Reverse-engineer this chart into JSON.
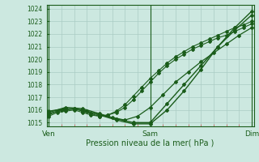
{
  "title": "Pression niveau de la mer( hPa )",
  "bg_color": "#cce8e0",
  "grid_color": "#aaccC4",
  "line_color": "#1a5c1a",
  "tick_color": "#cc3333",
  "text_color": "#1a5c1a",
  "ylim": [
    1014.7,
    1024.3
  ],
  "yticks": [
    1015,
    1016,
    1017,
    1018,
    1019,
    1020,
    1021,
    1022,
    1023,
    1024
  ],
  "xlim": [
    -0.5,
    48.5
  ],
  "xtick_positions": [
    0,
    24,
    48
  ],
  "xtick_labels": [
    "Ven",
    "Sam",
    "Dim"
  ],
  "series": [
    {
      "x": [
        0,
        2,
        4,
        6,
        8,
        10,
        12,
        14,
        16,
        18,
        20,
        22,
        24,
        26,
        28,
        30,
        32,
        34,
        36,
        38,
        40,
        42,
        44,
        46,
        48
      ],
      "y": [
        1015.5,
        1015.8,
        1015.9,
        1016.0,
        1015.8,
        1015.6,
        1015.5,
        1015.6,
        1015.8,
        1016.2,
        1016.8,
        1017.5,
        1018.2,
        1018.9,
        1019.5,
        1020.0,
        1020.4,
        1020.8,
        1021.1,
        1021.4,
        1021.7,
        1021.9,
        1022.2,
        1022.5,
        1022.8
      ],
      "marker": "D",
      "markersize": 2.0,
      "linewidth": 0.8
    },
    {
      "x": [
        0,
        2,
        4,
        6,
        8,
        10,
        12,
        14,
        16,
        18,
        20,
        22,
        24,
        26,
        28,
        30,
        32,
        34,
        36,
        38,
        40,
        42,
        44,
        46,
        48
      ],
      "y": [
        1015.6,
        1015.9,
        1016.0,
        1016.1,
        1015.9,
        1015.7,
        1015.5,
        1015.6,
        1015.9,
        1016.4,
        1017.1,
        1017.8,
        1018.5,
        1019.1,
        1019.7,
        1020.2,
        1020.6,
        1021.0,
        1021.3,
        1021.6,
        1021.9,
        1022.2,
        1022.5,
        1022.7,
        1023.0
      ],
      "marker": "D",
      "markersize": 2.0,
      "linewidth": 0.8
    },
    {
      "x": [
        0,
        3,
        6,
        9,
        12,
        15,
        18,
        21,
        24,
        27,
        30,
        33,
        36,
        39,
        42,
        45,
        48
      ],
      "y": [
        1015.7,
        1016.0,
        1016.1,
        1015.9,
        1015.6,
        1015.4,
        1015.2,
        1015.5,
        1016.2,
        1017.2,
        1018.2,
        1019.0,
        1019.8,
        1020.5,
        1021.2,
        1021.9,
        1022.5
      ],
      "marker": "D",
      "markersize": 2.0,
      "linewidth": 0.9
    },
    {
      "x": [
        0,
        4,
        8,
        12,
        16,
        20,
        24,
        28,
        32,
        36,
        40,
        44,
        48
      ],
      "y": [
        1015.8,
        1016.2,
        1016.1,
        1015.7,
        1015.3,
        1015.0,
        1015.0,
        1016.5,
        1018.0,
        1019.5,
        1021.0,
        1022.3,
        1023.5
      ],
      "marker": "D",
      "markersize": 2.0,
      "linewidth": 1.0
    },
    {
      "x": [
        0,
        4,
        8,
        12,
        16,
        20,
        24,
        28,
        32,
        36,
        40,
        44,
        48
      ],
      "y": [
        1015.9,
        1016.1,
        1016.0,
        1015.6,
        1015.2,
        1014.9,
        1014.9,
        1016.0,
        1017.5,
        1019.2,
        1021.0,
        1022.5,
        1023.8
      ],
      "marker": "D",
      "markersize": 2.0,
      "linewidth": 1.0
    }
  ]
}
